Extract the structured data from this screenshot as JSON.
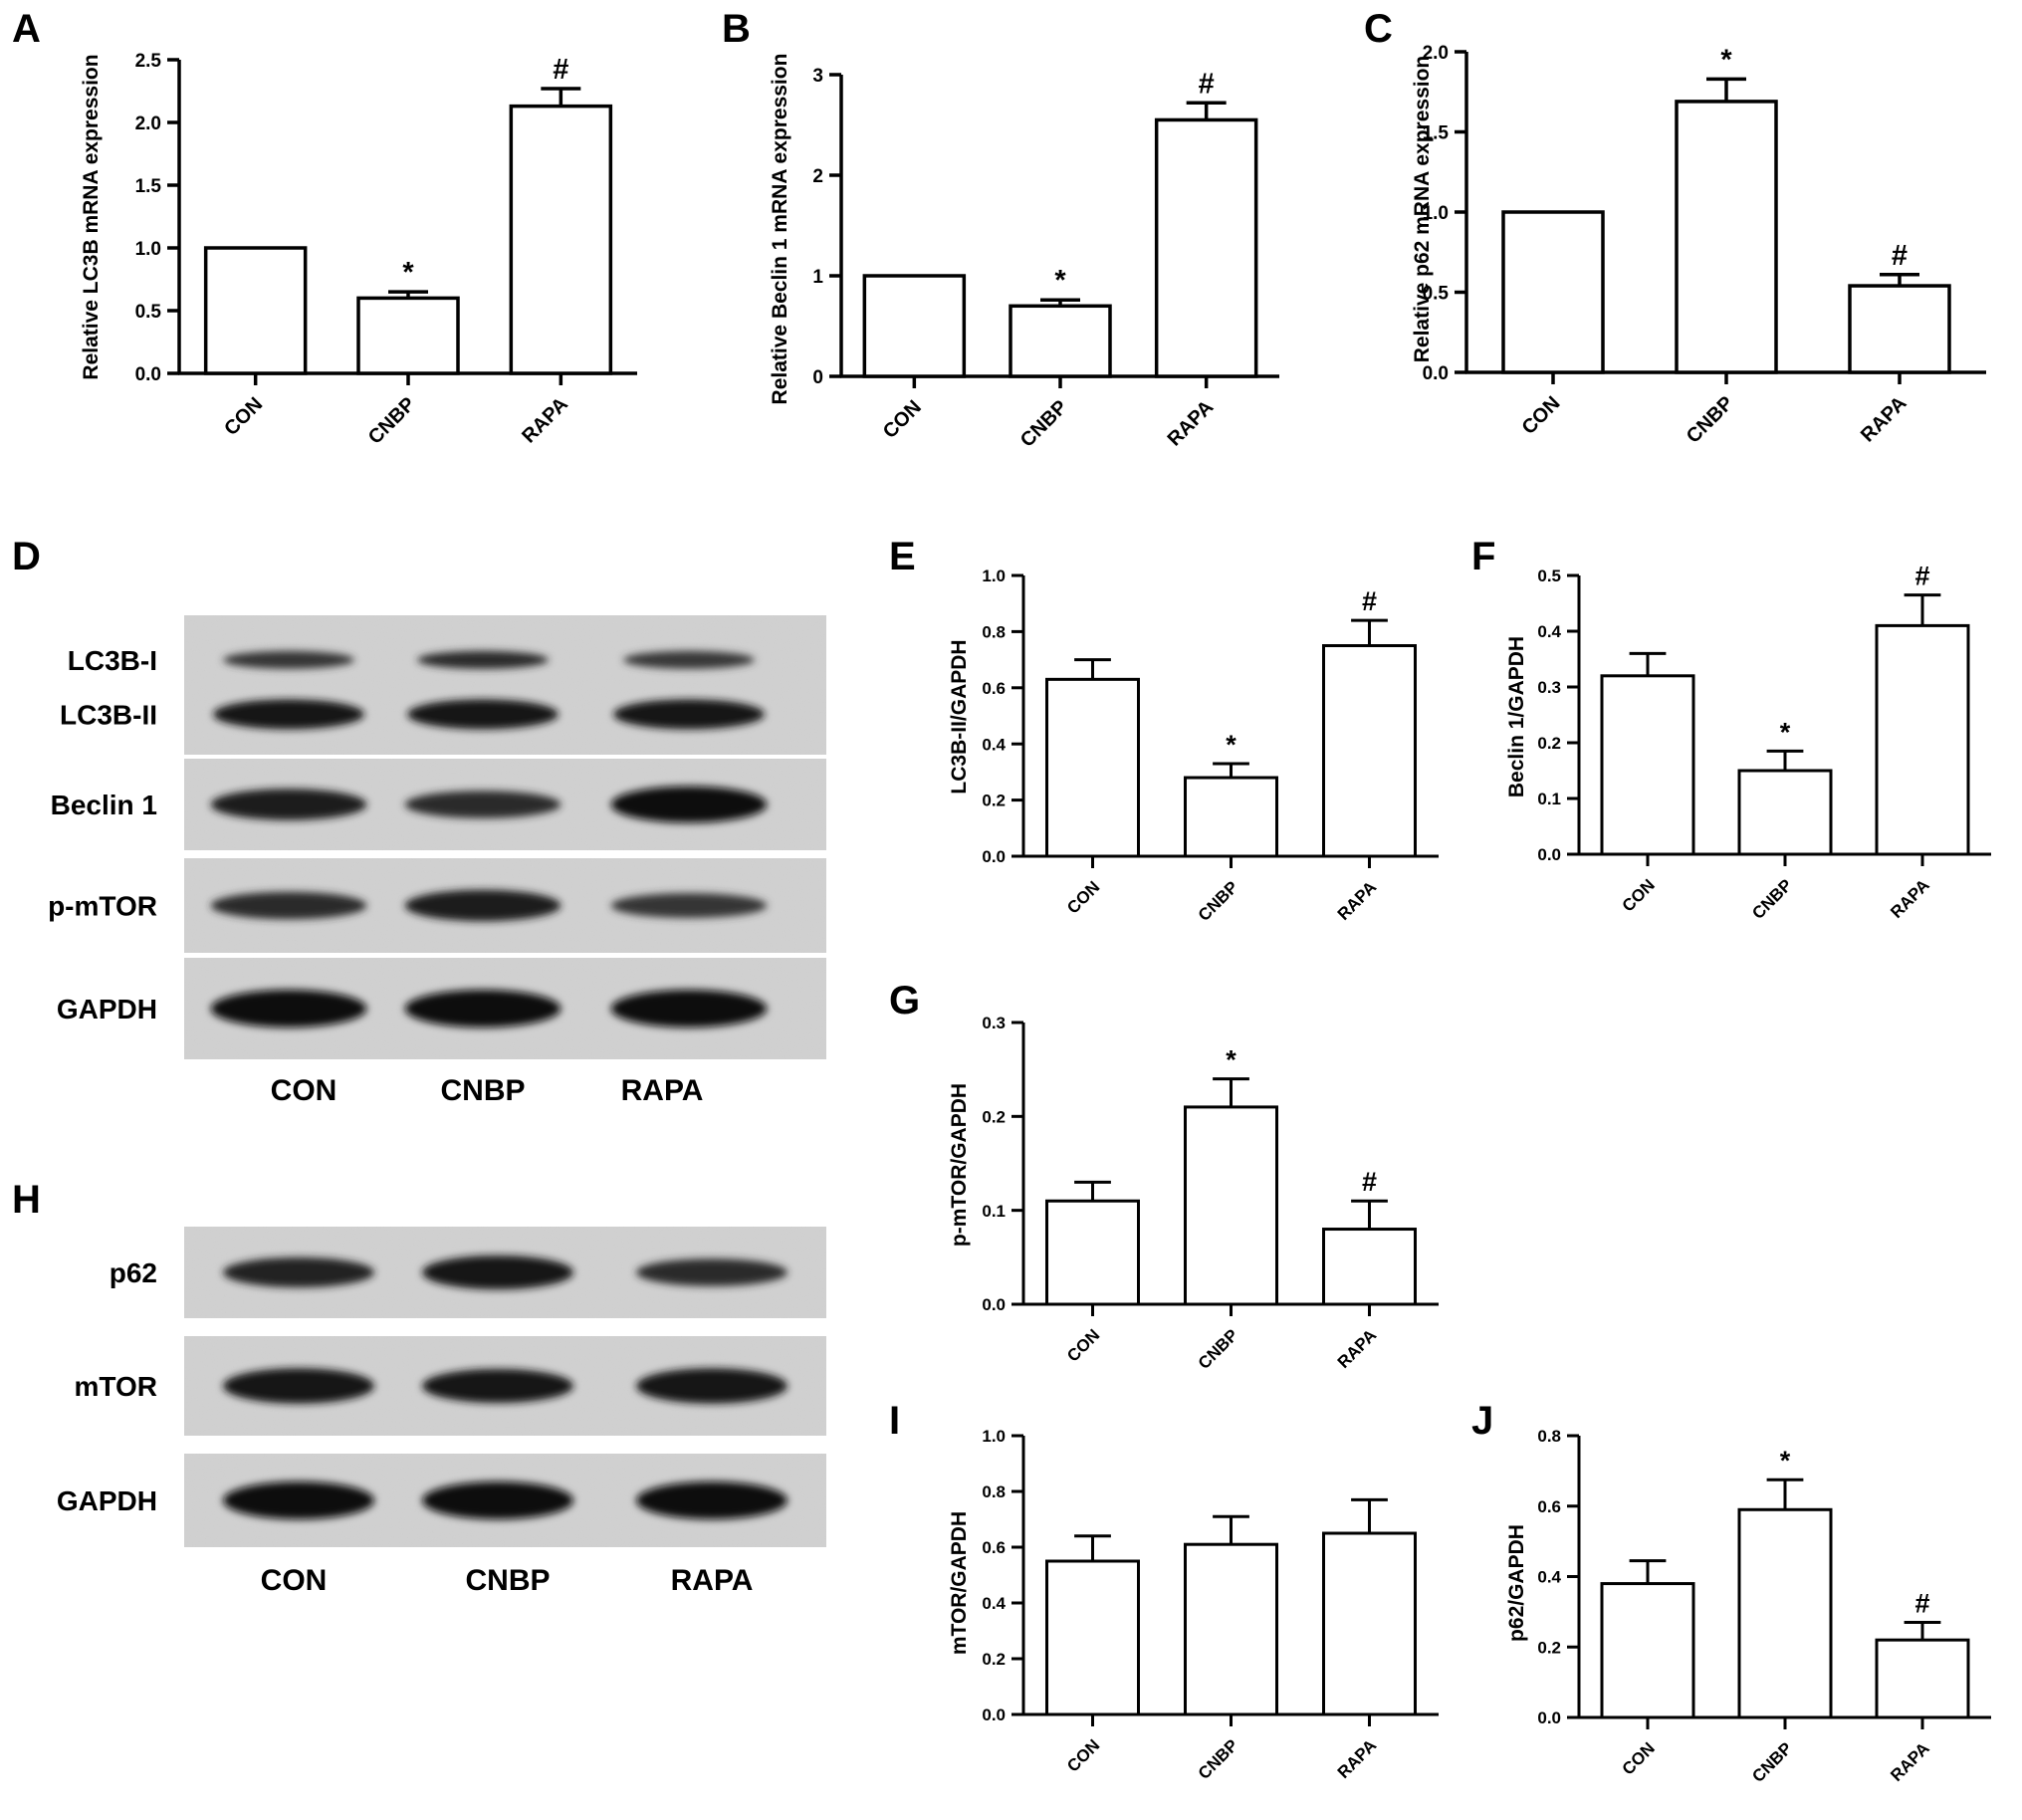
{
  "chart_data": [
    {
      "panel": "A",
      "type": "bar",
      "categories": [
        "CON",
        "CNBP",
        "RAPA"
      ],
      "values": [
        1.0,
        0.6,
        2.13
      ],
      "errors": [
        0,
        0.05,
        0.14
      ],
      "annotations": [
        "",
        "*",
        "#"
      ],
      "ylabel": "Relative LC3B mRNA expression",
      "ylim": [
        0,
        2.5
      ],
      "yticks": [
        "0.0",
        "0.5",
        "1.0",
        "1.5",
        "2.0",
        "2.5"
      ]
    },
    {
      "panel": "B",
      "type": "bar",
      "categories": [
        "CON",
        "CNBP",
        "RAPA"
      ],
      "values": [
        1.0,
        0.7,
        2.55
      ],
      "errors": [
        0,
        0.06,
        0.17
      ],
      "annotations": [
        "",
        "*",
        "#"
      ],
      "ylabel": "Relative Beclin 1 mRNA expression",
      "ylim": [
        0,
        3
      ],
      "yticks": [
        "0",
        "1",
        "2",
        "3"
      ]
    },
    {
      "panel": "C",
      "type": "bar",
      "categories": [
        "CON",
        "CNBP",
        "RAPA"
      ],
      "values": [
        1.0,
        1.69,
        0.54
      ],
      "errors": [
        0,
        0.14,
        0.07
      ],
      "annotations": [
        "",
        "*",
        "#"
      ],
      "ylabel": "Relative p62 mRNA expression",
      "ylim": [
        0,
        2.0
      ],
      "yticks": [
        "0.0",
        "0.5",
        "1.0",
        "1.5",
        "2.0"
      ]
    },
    {
      "panel": "E",
      "type": "bar",
      "categories": [
        "CON",
        "CNBP",
        "RAPA"
      ],
      "values": [
        0.63,
        0.28,
        0.75
      ],
      "errors": [
        0.07,
        0.05,
        0.09
      ],
      "annotations": [
        "",
        "*",
        "#"
      ],
      "ylabel": "LC3B-II/GAPDH",
      "ylim": [
        0,
        1.0
      ],
      "yticks": [
        "0.0",
        "0.2",
        "0.4",
        "0.6",
        "0.8",
        "1.0"
      ]
    },
    {
      "panel": "F",
      "type": "bar",
      "categories": [
        "CON",
        "CNBP",
        "RAPA"
      ],
      "values": [
        0.32,
        0.15,
        0.41
      ],
      "errors": [
        0.04,
        0.035,
        0.055
      ],
      "annotations": [
        "",
        "*",
        "#"
      ],
      "ylabel": "Beclin 1/GAPDH",
      "ylim": [
        0,
        0.5
      ],
      "yticks": [
        "0.0",
        "0.1",
        "0.2",
        "0.3",
        "0.4",
        "0.5"
      ]
    },
    {
      "panel": "G",
      "type": "bar",
      "categories": [
        "CON",
        "CNBP",
        "RAPA"
      ],
      "values": [
        0.11,
        0.21,
        0.08
      ],
      "errors": [
        0.02,
        0.03,
        0.03
      ],
      "annotations": [
        "",
        "*",
        "#"
      ],
      "ylabel": "p-mTOR/GAPDH",
      "ylim": [
        0,
        0.3
      ],
      "yticks": [
        "0.0",
        "0.1",
        "0.2",
        "0.3"
      ]
    },
    {
      "panel": "I",
      "type": "bar",
      "categories": [
        "CON",
        "CNBP",
        "RAPA"
      ],
      "values": [
        0.55,
        0.61,
        0.65
      ],
      "errors": [
        0.09,
        0.1,
        0.12
      ],
      "annotations": [
        "",
        "",
        ""
      ],
      "ylabel": "mTOR/GAPDH",
      "ylim": [
        0,
        1.0
      ],
      "yticks": [
        "0.0",
        "0.2",
        "0.4",
        "0.6",
        "0.8",
        "1.0"
      ]
    },
    {
      "panel": "J",
      "type": "bar",
      "categories": [
        "CON",
        "CNBP",
        "RAPA"
      ],
      "values": [
        0.38,
        0.59,
        0.22
      ],
      "errors": [
        0.065,
        0.085,
        0.05
      ],
      "annotations": [
        "",
        "*",
        "#"
      ],
      "ylabel": "p62/GAPDH",
      "ylim": [
        0,
        0.8
      ],
      "yticks": [
        "0.0",
        "0.2",
        "0.4",
        "0.6",
        "0.8"
      ]
    }
  ],
  "blots": [
    {
      "panel": "D",
      "rows": [
        {
          "labels": [
            "LC3B-I",
            "LC3B-II"
          ],
          "kind": "doublet",
          "intensity": [
            [
              0.55,
              0.9
            ],
            [
              0.7,
              0.9
            ],
            [
              0.5,
              0.9
            ]
          ]
        },
        {
          "labels": [
            "Beclin 1"
          ],
          "kind": "single",
          "intensity": [
            0.75,
            0.6,
            0.95
          ]
        },
        {
          "labels": [
            "p-mTOR"
          ],
          "kind": "single",
          "intensity": [
            0.6,
            0.75,
            0.5
          ]
        },
        {
          "labels": [
            "GAPDH"
          ],
          "kind": "single",
          "intensity": [
            1.0,
            1.0,
            1.0
          ]
        }
      ],
      "lanes": [
        "CON",
        "CNBP",
        "RAPA"
      ]
    },
    {
      "panel": "H",
      "rows": [
        {
          "labels": [
            "p62"
          ],
          "kind": "single",
          "intensity": [
            0.7,
            0.85,
            0.6
          ]
        },
        {
          "labels": [
            "mTOR"
          ],
          "kind": "single",
          "intensity": [
            0.9,
            0.85,
            0.9
          ]
        },
        {
          "labels": [
            "GAPDH"
          ],
          "kind": "single",
          "intensity": [
            1.0,
            1.0,
            1.0
          ]
        }
      ],
      "lanes": [
        "CON",
        "CNBP",
        "RAPA"
      ]
    }
  ]
}
